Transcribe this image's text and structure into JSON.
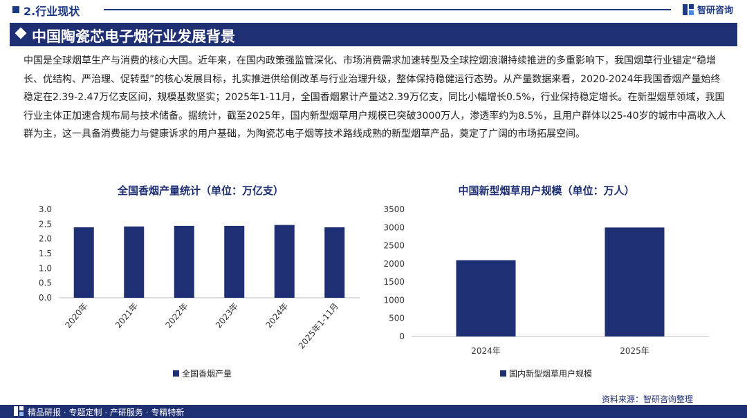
{
  "header": {
    "section_title": "2.行业现状",
    "brand_name": "智研咨询",
    "brand_icon": "zhiyan-logo-icon"
  },
  "banner": {
    "title": "中国陶瓷芯电子烟行业发展背景",
    "icon": "diamond-icon"
  },
  "intro_text": "中国是全球烟草生产与消费的核心大国。近年来，在国内政策强监管深化、市场消费需求加速转型及全球控烟浪潮持续推进的多重影响下，我国烟草行业锚定“稳增长、优结构、严治理、促转型”的核心发展目标，扎实推进供给侧改革与行业治理升级，整体保持稳健运行态势。从产量数据来看，2020-2024年我国香烟产量始终稳定在2.39-2.47万亿支区间，规模基数坚实；2025年1-11月，全国香烟累计产量达2.39万亿支，同比小幅增长0.5%，行业保持稳定增长。在新型烟草领域，我国行业主体正加速合规布局与技术储备。据统计，截至2025年，国内新型烟草用户规模已突破3000万人，渗透率约为8.5%，且用户群体以25-40岁的城市中高收入人群为主，这一具备消费能力与健康诉求的用户基础，为陶瓷芯电子烟等技术路线成熟的新型烟草产品，奠定了广阔的市场拓展空间。",
  "chart_data": [
    {
      "type": "bar",
      "title": "全国香烟产量统计（单位：万亿支）",
      "categories": [
        "2020年",
        "2021年",
        "2022年",
        "2023年",
        "2024年",
        "2025年1-11月"
      ],
      "series": [
        {
          "name": "全国香烟产量",
          "values": [
            2.39,
            2.42,
            2.44,
            2.44,
            2.47,
            2.39
          ]
        }
      ],
      "ylim": [
        0,
        3.0
      ],
      "yticks": [
        "0.0",
        "0.5",
        "1.0",
        "1.5",
        "2.0",
        "2.5",
        "3.0"
      ],
      "legend": "bottom-left",
      "grid": false,
      "color": "#1e2f73"
    },
    {
      "type": "bar",
      "title": "中国新型烟草用户规模（单位：万人）",
      "categories": [
        "2024年",
        "2025年"
      ],
      "series": [
        {
          "name": "国内新型烟草用户规模",
          "values": [
            2100,
            3000
          ]
        }
      ],
      "ylim": [
        0,
        3500
      ],
      "yticks": [
        "0",
        "500",
        "1000",
        "1500",
        "2000",
        "2500",
        "3000",
        "3500"
      ],
      "legend": "bottom-center",
      "grid": false,
      "color": "#1e2f73"
    }
  ],
  "source": "资料来源：智研咨询整理",
  "footer": {
    "text": "精品研报 · 专题定制 · 产研服务 · 专精特新"
  }
}
